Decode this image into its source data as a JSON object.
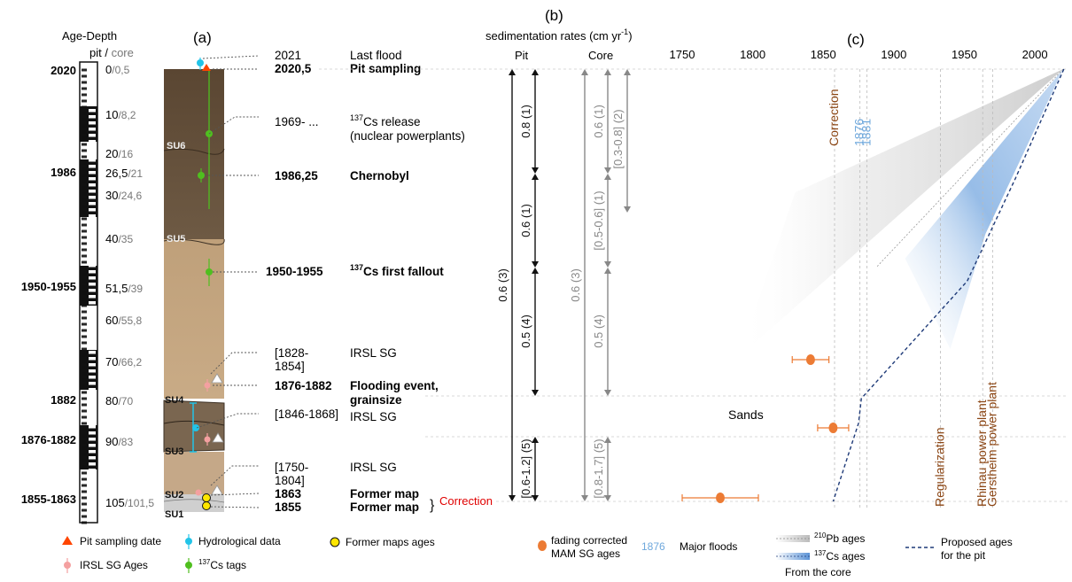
{
  "panel_labels": {
    "a": "(a)",
    "b": "(b)",
    "c": "(c)"
  },
  "age_depth": {
    "title": "Age-Depth",
    "sub_pit": "pit",
    "sub_sep": " / ",
    "sub_core": "core",
    "left_ages": [
      "2020",
      "1986",
      "1950-1955",
      "1882",
      "1876-1882",
      "1855-1863"
    ],
    "depths": [
      {
        "pit": "0",
        "core": "/0,5"
      },
      {
        "pit": "10",
        "core": "/8,2"
      },
      {
        "pit": "20",
        "core": "/16"
      },
      {
        "pit": "26,5",
        "core": "/21"
      },
      {
        "pit": "30",
        "core": "/24,6"
      },
      {
        "pit": "40",
        "core": "/35"
      },
      {
        "pit": "51,5",
        "core": "/39"
      },
      {
        "pit": "60",
        "core": "/55,8"
      },
      {
        "pit": "70",
        "core": "/66,2"
      },
      {
        "pit": "80",
        "core": "/70"
      },
      {
        "pit": "90",
        "core": "/83"
      },
      {
        "pit": "105",
        "core": "/101,5"
      }
    ]
  },
  "units": [
    "SU6",
    "SU5",
    "SU4",
    "SU3",
    "SU2",
    "SU1"
  ],
  "events": [
    {
      "date": "2021",
      "label": "Last flood",
      "bold": false
    },
    {
      "date": "2020,5",
      "label": "Pit sampling",
      "bold": true
    },
    {
      "date": "1969- ...",
      "label_sup": "137",
      "label": "Cs release",
      "label2": "(nuclear powerplants)",
      "bold": false
    },
    {
      "date": "1986,25",
      "label": "Chernobyl",
      "bold": true
    },
    {
      "date": "1950-1955",
      "label_sup": "137",
      "label": "Cs first fallout",
      "bold": true
    },
    {
      "date": "[1828-",
      "date2": "1854]",
      "label": "IRSL SG",
      "bold": false
    },
    {
      "date": "1876-1882",
      "label": "Flooding event,",
      "label2": "grainsize",
      "bold": true
    },
    {
      "date": "[1846-1868]",
      "label": "IRSL SG",
      "bold": false
    },
    {
      "date": "[1750-",
      "date2": "1804]",
      "label": "IRSL SG",
      "bold": false
    },
    {
      "date": "1863",
      "label": "Former map",
      "bold": true
    },
    {
      "date": "1855",
      "label": "Former map",
      "bold": true
    }
  ],
  "correction_label": "Correction",
  "sedimentation": {
    "title": "sedimentation rates (cm yr",
    "title_sup": "-1",
    "title_end": ")",
    "pit_header": "Pit",
    "core_header": "Core",
    "pit_rates": [
      "0.8 (1)",
      "0.6 (1)",
      "0.5 (4)",
      "0.6 (3)",
      "[0.6-1.2] (5)"
    ],
    "core_rates": [
      "0.6 (1)",
      "[0.3-0.8] (2)",
      "[0.5-0.6] (1)",
      "0.5 (4)",
      "0.6 (3)",
      "[0.8-1.7] (5)"
    ]
  },
  "chart_data": {
    "type": "line",
    "x_ticks": [
      "1750",
      "1800",
      "1850",
      "1900",
      "1950",
      "2000"
    ],
    "xlim": [
      1710,
      2020
    ],
    "vertical_markers": [
      {
        "year": 1858,
        "label": "Correction",
        "color": "#8B4513"
      },
      {
        "year": 1876,
        "label": "1876",
        "color": "#6fa8dc"
      },
      {
        "year": 1881,
        "label": "1881",
        "color": "#6fa8dc"
      },
      {
        "year": 1933,
        "label": "Regularization",
        "color": "#8B4513"
      },
      {
        "year": 1963,
        "label": "Rhinau power plant",
        "color": "#8B4513"
      },
      {
        "year": 1970,
        "label": "Gerstheim power plant",
        "color": "#8B4513"
      }
    ],
    "region_label": "Sands",
    "irsl_points": [
      {
        "year": 1841,
        "xerr": [
          1828,
          1854
        ]
      },
      {
        "year": 1857,
        "xerr": [
          1846,
          1868
        ]
      },
      {
        "year": 1777,
        "xerr": [
          1750,
          1804
        ]
      }
    ],
    "proposed_pit_ages": [
      {
        "depth": 0,
        "year": 2020.5
      },
      {
        "depth": 26.5,
        "year": 1986.25
      },
      {
        "depth": 51.5,
        "year": 1952
      },
      {
        "depth": 80,
        "year": 1877
      },
      {
        "depth": 86,
        "year": 1875
      },
      {
        "depth": 105,
        "year": 1857
      }
    ]
  },
  "legend": {
    "pit_sampling": "Pit sampling date",
    "hydro": "Hydrological data",
    "former_maps": "Former maps ages",
    "irsl": "IRSL SG Ages",
    "cs_tags_sup": "137",
    "cs_tags": "Cs tags",
    "fading_1": "fading corrected",
    "fading_2": "MAM SG ages",
    "major_floods_year": "1876",
    "major_floods": "Major floods",
    "pb_sup": "210",
    "pb": "Pb ages",
    "cs_sup": "137",
    "cs": "Cs ages",
    "from_core": "From the core",
    "proposed_1": "Proposed ages",
    "proposed_2": "for the pit"
  },
  "colors": {
    "pit_sampling": "#ff4500",
    "hydro": "#22c4e8",
    "cs": "#4fbf1f",
    "irsl": "#f4a0a0",
    "mam": "#ec7b34",
    "former_map": "#ffe600",
    "major_flood": "#6fa8dc",
    "correction_red": "#e00000",
    "brown": "#8B4513"
  }
}
